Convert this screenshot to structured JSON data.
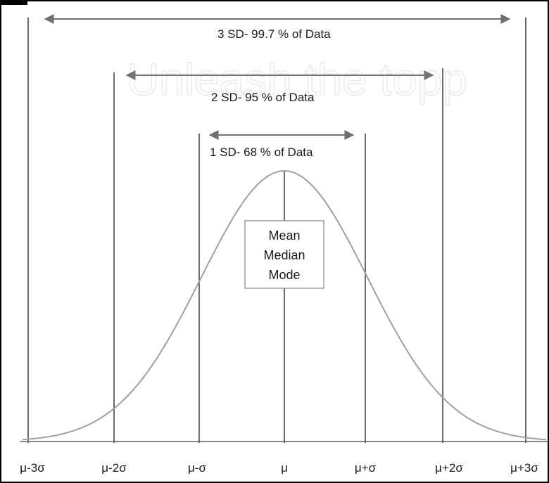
{
  "watermark": {
    "text": "Unleash the topp"
  },
  "diagram": {
    "range_labels": [
      {
        "id": "3sd",
        "text": "3 SD- 99.7 % of Data"
      },
      {
        "id": "2sd",
        "text": "2 SD- 95 % of Data"
      },
      {
        "id": "1sd",
        "text": "1 SD- 68 % of Data"
      }
    ],
    "center_box": [
      "Mean",
      "Median",
      "Mode"
    ],
    "tick_labels": [
      "μ-3σ",
      "μ-2σ",
      "μ-σ",
      "μ",
      "μ+σ",
      "μ+2σ",
      "μ+3σ"
    ],
    "colors": {
      "lines": "#6a6a6a",
      "curve": "#a0a0a0",
      "arrows": "#707070",
      "text": "#1a1a1a",
      "border": "#000000"
    }
  }
}
